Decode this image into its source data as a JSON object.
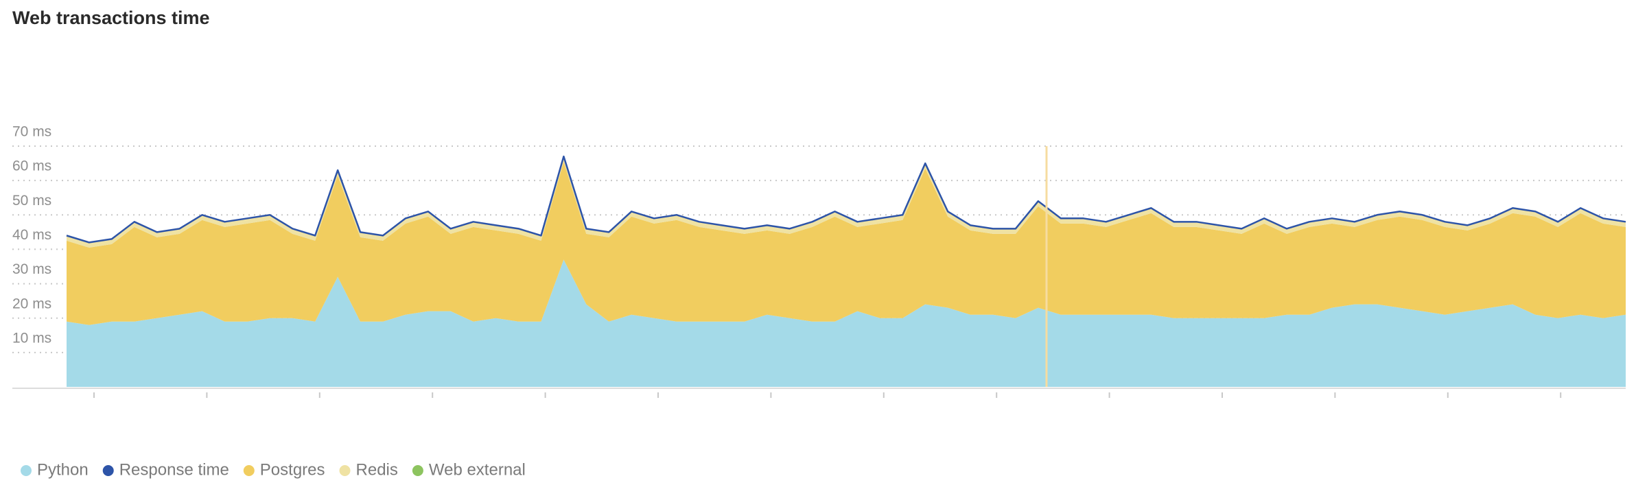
{
  "chart_data": {
    "type": "stacked_area",
    "title": "Web transactions time",
    "ylim": [
      0,
      70
    ],
    "yticks": [
      {
        "value": 10,
        "label": "10 ms"
      },
      {
        "value": 20,
        "label": "20 ms"
      },
      {
        "value": 30,
        "label": "30 ms"
      },
      {
        "value": 40,
        "label": "40 ms"
      },
      {
        "value": 50,
        "label": "50 ms"
      },
      {
        "value": 60,
        "label": "60 ms"
      },
      {
        "value": 70,
        "label": "70 ms"
      }
    ],
    "grid": true,
    "legend": "bottom-left",
    "series": [
      {
        "name": "Python",
        "color": "#a4dae8",
        "style": "area",
        "values": [
          19,
          18,
          19,
          19,
          20,
          21,
          22,
          19,
          19,
          20,
          20,
          19,
          32,
          19,
          19,
          21,
          22,
          22,
          19,
          20,
          19,
          19,
          37,
          24,
          19,
          21,
          20,
          19,
          19,
          19,
          19,
          21,
          20,
          19,
          19,
          22,
          20,
          20,
          24,
          23,
          21,
          21,
          20,
          23,
          21,
          21,
          21,
          21,
          21,
          20,
          20,
          20,
          20,
          20,
          21,
          21,
          23,
          24,
          24,
          23,
          22,
          21,
          22,
          23,
          24,
          21,
          20,
          21,
          20,
          21
        ]
      },
      {
        "name": "Response time",
        "color": "#2d54a8",
        "style": "line",
        "values": [
          44,
          42,
          43,
          48,
          45,
          46,
          50,
          48,
          49,
          50,
          46,
          44,
          63,
          45,
          44,
          49,
          51,
          46,
          48,
          47,
          46,
          44,
          67,
          46,
          45,
          51,
          49,
          50,
          48,
          47,
          46,
          47,
          46,
          48,
          51,
          48,
          49,
          50,
          65,
          51,
          47,
          46,
          46,
          54,
          49,
          49,
          48,
          50,
          52,
          48,
          48,
          47,
          46,
          49,
          46,
          48,
          49,
          48,
          50,
          51,
          50,
          48,
          47,
          49,
          52,
          51,
          48,
          52,
          49,
          48
        ]
      },
      {
        "name": "Postgres",
        "color": "#f1cd5f",
        "style": "area",
        "values": [
          23.5,
          22.5,
          22.5,
          27.5,
          23.5,
          23.5,
          26.5,
          27.5,
          28.5,
          28.5,
          24.5,
          23.5,
          29.5,
          24.5,
          23.5,
          26.5,
          27.5,
          22.5,
          27.5,
          25.5,
          25.5,
          23.5,
          28.5,
          20.5,
          24.5,
          28.5,
          27.5,
          29.5,
          27.5,
          26.5,
          25.5,
          24.5,
          24.5,
          27.5,
          30.5,
          24.5,
          27.5,
          28.5,
          39.5,
          26.5,
          24.5,
          23.5,
          24.5,
          29.5,
          26.5,
          26.5,
          25.5,
          27.5,
          29.5,
          26.5,
          26.5,
          25.5,
          24.5,
          27.5,
          23.5,
          25.5,
          24.5,
          22.5,
          24.5,
          26.5,
          26.5,
          25.5,
          23.5,
          24.5,
          26.5,
          28.5,
          26.5,
          29.5,
          27.5,
          25.5
        ]
      },
      {
        "name": "Redis",
        "color": "#efe2a3",
        "style": "area",
        "values": [
          1.5,
          1.5,
          1.5,
          1.5,
          1.5,
          1.5,
          1.5,
          1.5,
          1.5,
          1.5,
          1.5,
          1.5,
          1.5,
          1.5,
          1.5,
          1.5,
          1.5,
          1.5,
          1.5,
          1.5,
          1.5,
          1.5,
          1.5,
          1.5,
          1.5,
          1.5,
          1.5,
          1.5,
          1.5,
          1.5,
          1.5,
          1.5,
          1.5,
          1.5,
          1.5,
          1.5,
          1.5,
          1.5,
          1.5,
          1.5,
          1.5,
          1.5,
          1.5,
          1.5,
          1.5,
          1.5,
          1.5,
          1.5,
          1.5,
          1.5,
          1.5,
          1.5,
          1.5,
          1.5,
          1.5,
          1.5,
          1.5,
          1.5,
          1.5,
          1.5,
          1.5,
          1.5,
          1.5,
          1.5,
          1.5,
          1.5,
          1.5,
          1.5,
          1.5,
          1.5
        ]
      },
      {
        "name": "Web external",
        "color": "#8dc45f",
        "style": "area",
        "values": [
          null,
          null,
          null,
          null,
          null,
          null,
          null,
          null,
          null,
          null,
          null,
          null,
          null,
          null,
          null,
          null,
          null,
          null,
          null,
          null,
          null,
          null,
          null,
          null,
          null,
          null,
          null,
          null,
          null,
          null,
          null,
          null,
          null,
          null,
          null,
          null,
          null,
          null,
          null,
          null,
          null,
          null,
          null,
          null,
          null,
          null,
          null,
          null,
          null,
          null,
          null,
          null,
          null,
          null,
          null,
          null,
          null,
          null,
          null,
          null,
          null,
          null,
          null,
          null,
          null,
          null,
          null,
          null,
          null,
          null
        ]
      }
    ]
  }
}
